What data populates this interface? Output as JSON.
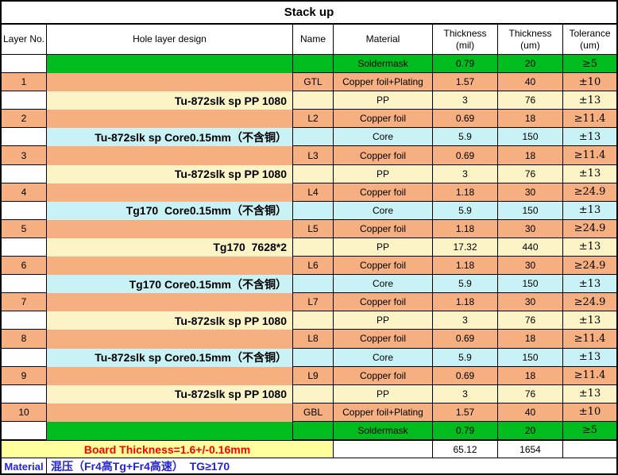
{
  "title": "Stack up",
  "header": {
    "layer_no": "Layer No.",
    "hole": "Hole layer design",
    "name": "Name",
    "material": "Material",
    "thickness_mil": "Thickness\n(mil)",
    "thickness_um": "Thickness\n(um)",
    "tolerance": "Tolerance\n(um)"
  },
  "colors": {
    "soldermask_green": "#00BC1E",
    "copper_salmon": "#F5AF80",
    "pp_cream": "#FCF3C7",
    "core_cyan": "#C9F2F7",
    "board_row_yellow": "#FFFF9E",
    "via_bar_yellow": "#FFFF00",
    "outline_red": "#FF0000",
    "footer_text_blue": "#2323DC",
    "board_text_red": "#FF0000"
  },
  "rows": [
    {
      "type": "solder",
      "layer": "",
      "hole_text": "",
      "name": "",
      "material": "Soldermask",
      "mil": "0.79",
      "um": "20",
      "tol": "≥5"
    },
    {
      "type": "copper",
      "layer": "1",
      "hole_text": "",
      "name": "GTL",
      "material": "Copper foil+Plating",
      "mil": "1.57",
      "um": "40",
      "tol": "±10"
    },
    {
      "type": "pp",
      "layer": "",
      "hole_text": "Tu-872slk sp PP 1080",
      "name": "",
      "material": "PP",
      "mil": "3",
      "um": "76",
      "tol": "±13"
    },
    {
      "type": "copper",
      "layer": "2",
      "hole_text": "",
      "name": "L2",
      "material": "Copper foil",
      "mil": "0.69",
      "um": "18",
      "tol": "≥11.4"
    },
    {
      "type": "core",
      "layer": "",
      "hole_text": "Tu-872slk sp Core0.15mm（不含铜）",
      "name": "",
      "material": "Core",
      "mil": "5.9",
      "um": "150",
      "tol": "±13"
    },
    {
      "type": "copper",
      "layer": "3",
      "hole_text": "",
      "name": "L3",
      "material": "Copper foil",
      "mil": "0.69",
      "um": "18",
      "tol": "≥11.4"
    },
    {
      "type": "pp",
      "layer": "",
      "hole_text": "Tu-872slk sp PP 1080",
      "name": "",
      "material": "PP",
      "mil": "3",
      "um": "76",
      "tol": "±13"
    },
    {
      "type": "copper",
      "layer": "4",
      "hole_text": "",
      "name": "L4",
      "material": "Copper foil",
      "mil": "1.18",
      "um": "30",
      "tol": "≥24.9"
    },
    {
      "type": "core",
      "layer": "",
      "hole_text": "Tg170  Core0.15mm（不含铜）",
      "name": "",
      "material": "Core",
      "mil": "5.9",
      "um": "150",
      "tol": "±13"
    },
    {
      "type": "copper",
      "layer": "5",
      "hole_text": "",
      "name": "L5",
      "material": "Copper foil",
      "mil": "1.18",
      "um": "30",
      "tol": "≥24.9"
    },
    {
      "type": "pp",
      "layer": "",
      "hole_text": "Tg170  7628*2",
      "name": "",
      "material": "PP",
      "mil": "17.32",
      "um": "440",
      "tol": "±13"
    },
    {
      "type": "copper",
      "layer": "6",
      "hole_text": "",
      "name": "L6",
      "material": "Copper foil",
      "mil": "1.18",
      "um": "30",
      "tol": "≥24.9"
    },
    {
      "type": "core",
      "layer": "",
      "hole_text": "Tg170 Core0.15mm（不含铜）",
      "name": "",
      "material": "Core",
      "mil": "5.9",
      "um": "150",
      "tol": "±13"
    },
    {
      "type": "copper",
      "layer": "7",
      "hole_text": "",
      "name": "L7",
      "material": "Copper foil",
      "mil": "1.18",
      "um": "30",
      "tol": "≥24.9"
    },
    {
      "type": "pp",
      "layer": "",
      "hole_text": "Tu-872slk sp PP 1080",
      "name": "",
      "material": "PP",
      "mil": "3",
      "um": "76",
      "tol": "±13"
    },
    {
      "type": "copper",
      "layer": "8",
      "hole_text": "",
      "name": "L8",
      "material": "Copper foil",
      "mil": "0.69",
      "um": "18",
      "tol": "≥11.4"
    },
    {
      "type": "core",
      "layer": "",
      "hole_text": "Tu-872slk sp Core0.15mm（不含铜）",
      "name": "",
      "material": "Core",
      "mil": "5.9",
      "um": "150",
      "tol": "±13"
    },
    {
      "type": "copper",
      "layer": "9",
      "hole_text": "",
      "name": "L9",
      "material": "Copper foil",
      "mil": "0.69",
      "um": "18",
      "tol": "≥11.4"
    },
    {
      "type": "pp",
      "layer": "",
      "hole_text": "Tu-872slk sp PP 1080",
      "name": "",
      "material": "PP",
      "mil": "3",
      "um": "76",
      "tol": "±13"
    },
    {
      "type": "copper",
      "layer": "10",
      "hole_text": "",
      "name": "GBL",
      "material": "Copper foil+Plating",
      "mil": "1.57",
      "um": "40",
      "tol": "±10"
    },
    {
      "type": "solder",
      "layer": "",
      "hole_text": "",
      "name": "",
      "material": "Soldermask",
      "mil": "0.79",
      "um": "20",
      "tol": "≥5"
    }
  ],
  "hole_design": {
    "via_bar_rows": [
      1,
      19
    ],
    "outer_outline_rows": [
      1,
      19
    ],
    "core_group_row_ranges": [
      [
        3,
        5
      ],
      [
        7,
        9
      ],
      [
        11,
        13
      ],
      [
        15,
        17
      ]
    ]
  },
  "footer": {
    "board_thickness_label": "Board Thickness=1.6+/-0.16mm",
    "total_mil": "65.12",
    "total_um": "1654",
    "material_label": "Material",
    "material_value": "混压（Fr4高Tg+Fr4高速）  TG≥170"
  }
}
